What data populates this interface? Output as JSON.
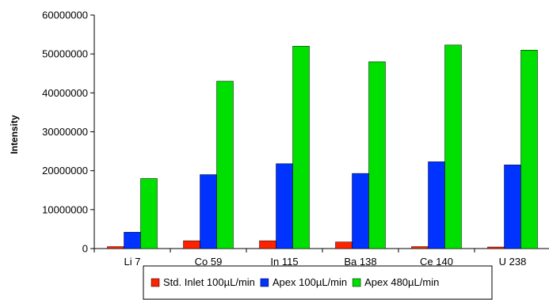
{
  "chart_data": {
    "type": "bar",
    "title": "",
    "xlabel": "",
    "ylabel": "Intensity",
    "ylim": [
      0,
      60000000
    ],
    "y_ticks": [
      "0",
      "10000000",
      "20000000",
      "30000000",
      "40000000",
      "50000000",
      "60000000"
    ],
    "grid": false,
    "legend_position": "bottom",
    "categories": [
      "Li 7",
      "Co 59",
      "In 115",
      "Ba 138",
      "Ce 140",
      "U 238"
    ],
    "series": [
      {
        "name": "Std. Inlet 100µL/min",
        "color": "#ff2200",
        "values": [
          500000,
          2000000,
          2000000,
          1700000,
          500000,
          400000
        ]
      },
      {
        "name": "Apex 100µL/min",
        "color": "#0033ff",
        "values": [
          4200000,
          19000000,
          21800000,
          19300000,
          22300000,
          21500000
        ]
      },
      {
        "name": "Apex 480µL/min",
        "color": "#00e000",
        "values": [
          18000000,
          43000000,
          52000000,
          48000000,
          52300000,
          51000000
        ]
      }
    ]
  }
}
